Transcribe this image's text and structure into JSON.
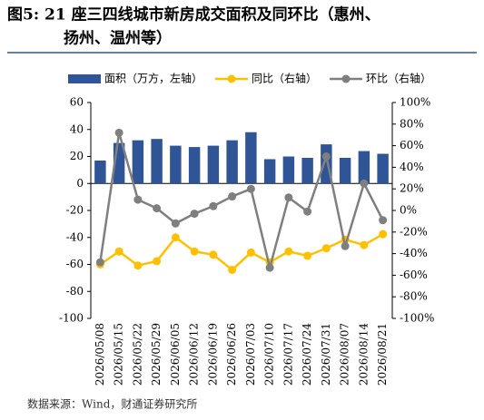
{
  "chart_data": {
    "type": "bar_line",
    "title": "图5: 21 座三四线城市新房成交面积及同环比（惠州、",
    "title_line2": "扬州、温州等）",
    "source": "数据来源：Wind，财通证券研究所",
    "categories": [
      "2026/05/08",
      "2026/05/15",
      "2026/05/22",
      "2026/05/29",
      "2026/06/05",
      "2026/06/12",
      "2026/06/19",
      "2026/06/26",
      "2026/07/03",
      "2026/07/10",
      "2026/07/17",
      "2026/07/24",
      "2026/07/31",
      "2026/08/07",
      "2026/08/14",
      "2026/08/21"
    ],
    "series": [
      {
        "name": "面积（万方，左轴）",
        "color": "#2f5597",
        "kind": "bar",
        "values": [
          17,
          30,
          32,
          33,
          28,
          27,
          28,
          32,
          38,
          18,
          20,
          19,
          29,
          19,
          24,
          22
        ]
      },
      {
        "name": "同比（右轴）",
        "color": "#ffc000",
        "kind": "line",
        "axis": "y2",
        "values": [
          -50,
          -38,
          -51,
          -47,
          -25,
          -38,
          -41,
          -55,
          -39,
          -48,
          -38,
          -42,
          -35,
          -27,
          -32,
          -22
        ]
      },
      {
        "name": "环比（右轴）",
        "color": "#7f7f7f",
        "kind": "line",
        "axis": "y2",
        "values": [
          -48,
          72,
          10,
          2,
          -12,
          -3,
          4,
          13,
          20,
          -53,
          12,
          -1,
          50,
          -33,
          25,
          -9
        ]
      }
    ],
    "ylim": [
      -100,
      60
    ],
    "yticks": [
      -100,
      -80,
      -60,
      -40,
      -20,
      0,
      20,
      40,
      60
    ],
    "y2lim": [
      -100,
      100
    ],
    "y2ticks": [
      {
        "value": -100,
        "label": "-100%"
      },
      {
        "value": -80,
        "label": "-80%"
      },
      {
        "value": -60,
        "label": "-60%"
      },
      {
        "value": -40,
        "label": "-40%"
      },
      {
        "value": -20,
        "label": "-20%"
      },
      {
        "value": 0,
        "label": "0%"
      },
      {
        "value": 20,
        "label": "20%"
      },
      {
        "value": 40,
        "label": "40%"
      },
      {
        "value": 60,
        "label": "60%"
      },
      {
        "value": 80,
        "label": "80%"
      },
      {
        "value": 100,
        "label": "100%"
      }
    ]
  }
}
